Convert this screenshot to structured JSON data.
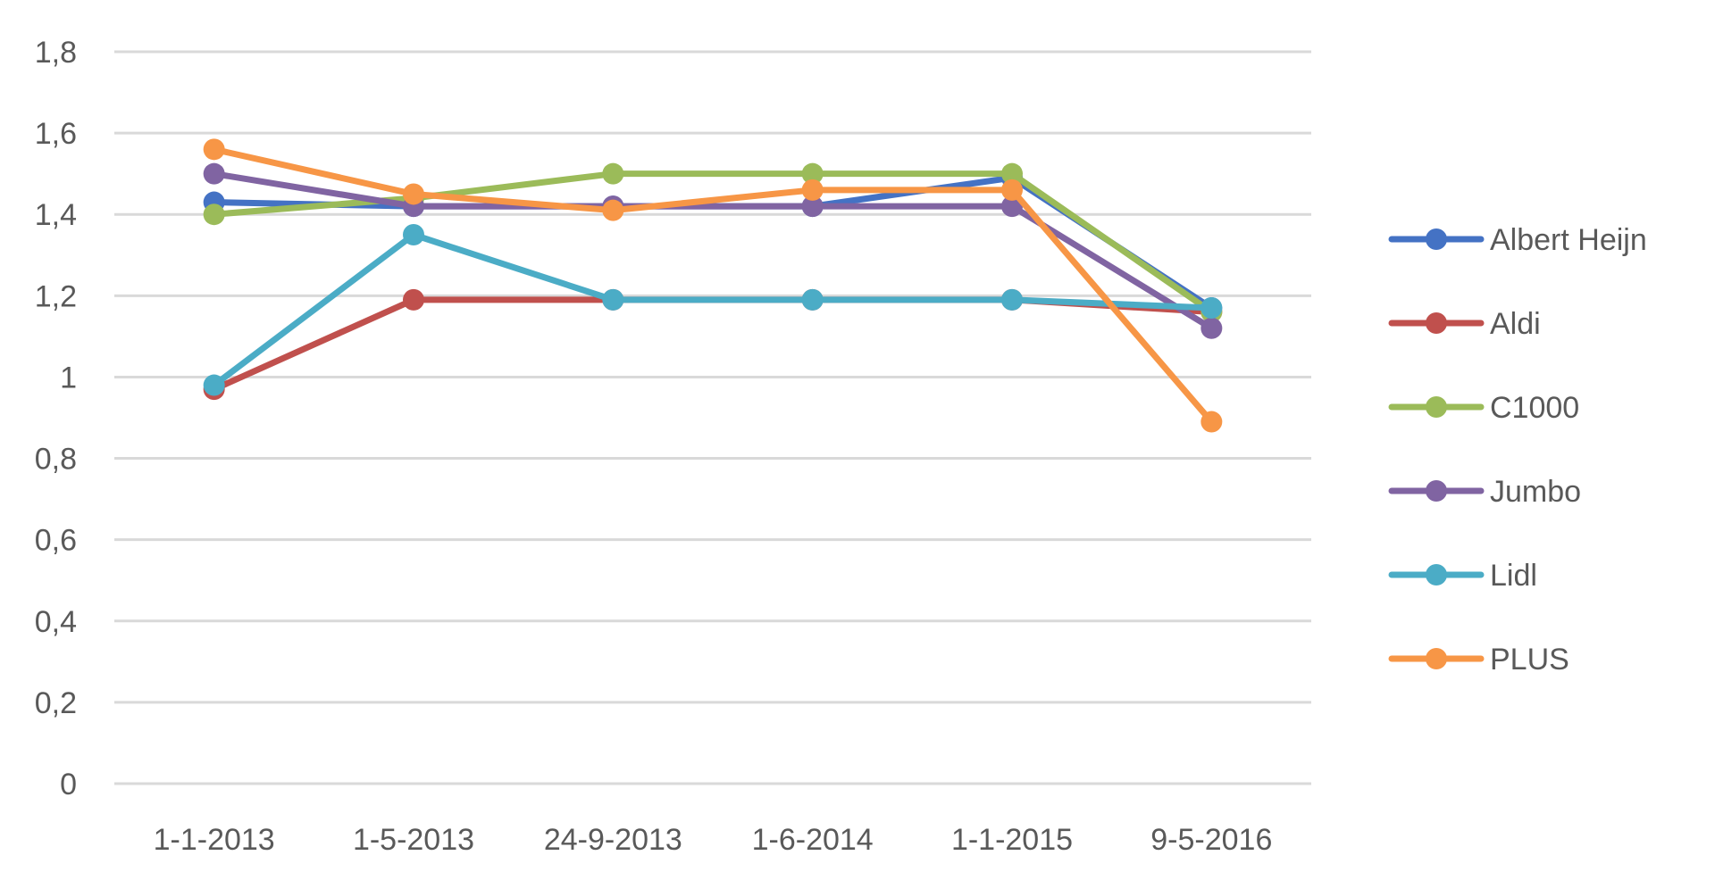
{
  "chart_data": {
    "type": "line",
    "title": "",
    "xlabel": "",
    "ylabel": "",
    "categories": [
      "1-1-2013",
      "1-5-2013",
      "24-9-2013",
      "1-6-2014",
      "1-1-2015",
      "9-5-2016"
    ],
    "ylim": [
      0,
      1.8
    ],
    "y_ticks": [
      "0",
      "0,2",
      "0,4",
      "0,6",
      "0,8",
      "1",
      "1,2",
      "1,4",
      "1,6",
      "1,8"
    ],
    "grid": true,
    "legend_position": "right",
    "series": [
      {
        "name": "Albert Heijn",
        "color": "#4472C4",
        "values": [
          1.43,
          1.42,
          1.42,
          1.42,
          1.49,
          1.17
        ]
      },
      {
        "name": "Aldi",
        "color": "#C0504D",
        "values": [
          0.97,
          1.19,
          1.19,
          1.19,
          1.19,
          1.16
        ]
      },
      {
        "name": "C1000",
        "color": "#9BBB59",
        "values": [
          1.4,
          1.44,
          1.5,
          1.5,
          1.5,
          1.16
        ]
      },
      {
        "name": "Jumbo",
        "color": "#8064A2",
        "values": [
          1.5,
          1.42,
          1.42,
          1.42,
          1.42,
          1.12
        ]
      },
      {
        "name": "Lidl",
        "color": "#4BACC6",
        "values": [
          0.98,
          1.35,
          1.19,
          1.19,
          1.19,
          1.17
        ]
      },
      {
        "name": "PLUS",
        "color": "#F79646",
        "values": [
          1.56,
          1.45,
          1.41,
          1.46,
          1.46,
          0.89
        ]
      }
    ]
  }
}
